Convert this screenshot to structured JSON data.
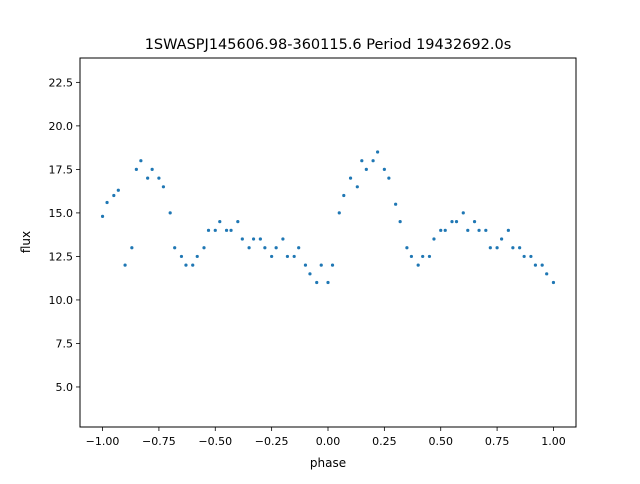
{
  "chart_data": {
    "type": "scatter",
    "title": "1SWASPJ145606.98-360115.6 Period 19432692.0s",
    "xlabel": "phase",
    "ylabel": "flux",
    "xlim": [
      -1.1,
      1.1
    ],
    "ylim": [
      2.7,
      23.9
    ],
    "xticks": [
      -1.0,
      -0.75,
      -0.5,
      -0.25,
      0.0,
      0.25,
      0.5,
      0.75,
      1.0
    ],
    "xtick_labels": [
      "−1.00",
      "−0.75",
      "−0.50",
      "−0.25",
      "0.00",
      "0.25",
      "0.50",
      "0.75",
      "1.00"
    ],
    "yticks": [
      5.0,
      7.5,
      10.0,
      12.5,
      15.0,
      17.5,
      20.0,
      22.5
    ],
    "ytick_labels": [
      "5.0",
      "7.5",
      "10.0",
      "12.5",
      "15.0",
      "17.5",
      "20.0",
      "22.5"
    ],
    "grid": false,
    "point_color": "#1f77b4",
    "series": [
      {
        "x": [
          -1.0,
          -0.98,
          -0.95,
          -0.93,
          -0.9,
          -0.87,
          -0.85,
          -0.83,
          -0.8,
          -0.78,
          -0.75,
          -0.73,
          -0.7,
          -0.68,
          -0.65,
          -0.63,
          -0.6,
          -0.58,
          -0.55,
          -0.53,
          -0.5,
          -0.48,
          -0.45,
          -0.43,
          -0.4,
          -0.38,
          -0.35,
          -0.33,
          -0.3,
          -0.28,
          -0.25,
          -0.23,
          -0.2,
          -0.18,
          -0.15,
          -0.13,
          -0.1,
          -0.08,
          -0.05,
          -0.03,
          0.0,
          0.02,
          0.05,
          0.07,
          0.1,
          0.13,
          0.15,
          0.17,
          0.2,
          0.22,
          0.25,
          0.27,
          0.3,
          0.32,
          0.35,
          0.37,
          0.4,
          0.42,
          0.45,
          0.47,
          0.5,
          0.52,
          0.55,
          0.57,
          0.6,
          0.62,
          0.65,
          0.67,
          0.7,
          0.72,
          0.75,
          0.77,
          0.8,
          0.82,
          0.85,
          0.87,
          0.9,
          0.92,
          0.95,
          0.97,
          1.0
        ],
        "y": [
          14.8,
          15.6,
          16.0,
          16.3,
          12.0,
          13.0,
          17.5,
          18.0,
          17.0,
          17.5,
          17.0,
          16.5,
          15.0,
          13.0,
          12.5,
          12.0,
          12.0,
          12.5,
          13.0,
          14.0,
          14.0,
          14.5,
          14.0,
          14.0,
          14.5,
          13.5,
          13.0,
          13.5,
          13.5,
          13.0,
          12.5,
          13.0,
          13.5,
          12.5,
          12.5,
          13.0,
          12.0,
          11.5,
          11.0,
          12.0,
          11.0,
          12.0,
          15.0,
          16.0,
          17.0,
          16.5,
          18.0,
          17.5,
          18.0,
          18.5,
          17.5,
          17.0,
          15.5,
          14.5,
          13.0,
          12.5,
          12.0,
          12.5,
          12.5,
          13.5,
          14.0,
          14.0,
          14.5,
          14.5,
          15.0,
          14.0,
          14.5,
          14.0,
          14.0,
          13.0,
          13.0,
          13.5,
          14.0,
          13.0,
          13.0,
          12.5,
          12.5,
          12.0,
          12.0,
          11.5,
          11.0
        ]
      }
    ]
  }
}
